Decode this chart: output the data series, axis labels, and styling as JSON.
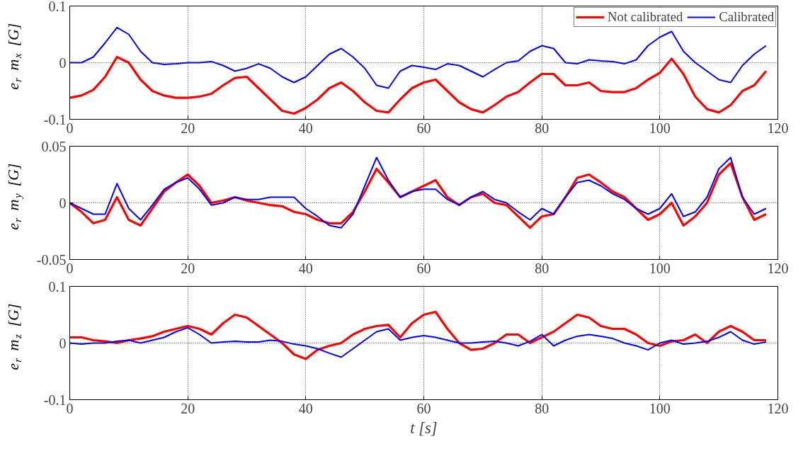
{
  "chart_data": [
    {
      "type": "line",
      "ylabel": "e$_{r}$ m$_{x}$ [G]",
      "xlim": [
        0,
        120
      ],
      "xticks": [
        0,
        20,
        40,
        60,
        80,
        100,
        120
      ],
      "ylim": [
        -0.1,
        0.1
      ],
      "yticks": [
        -0.1,
        0,
        0.1
      ],
      "grid": true,
      "legend": "top right",
      "line_style": "solid",
      "marker": "none",
      "x": [
        0,
        2,
        4,
        6,
        8,
        10,
        12,
        14,
        16,
        18,
        20,
        22,
        24,
        26,
        28,
        30,
        32,
        34,
        36,
        38,
        40,
        42,
        44,
        46,
        48,
        50,
        52,
        54,
        56,
        58,
        60,
        62,
        64,
        66,
        68,
        70,
        72,
        74,
        76,
        78,
        80,
        82,
        84,
        86,
        88,
        90,
        92,
        94,
        96,
        98,
        100,
        102,
        104,
        106,
        108,
        110,
        112,
        114,
        116,
        118
      ],
      "series": [
        {
          "name": "Not calibrated",
          "color": "#ff0000",
          "values": [
            -0.062,
            -0.058,
            -0.048,
            -0.025,
            0.01,
            0.0,
            -0.03,
            -0.05,
            -0.058,
            -0.062,
            -0.062,
            -0.06,
            -0.055,
            -0.04,
            -0.027,
            -0.025,
            -0.045,
            -0.065,
            -0.085,
            -0.09,
            -0.08,
            -0.065,
            -0.045,
            -0.035,
            -0.05,
            -0.07,
            -0.085,
            -0.088,
            -0.065,
            -0.045,
            -0.035,
            -0.03,
            -0.05,
            -0.07,
            -0.082,
            -0.088,
            -0.075,
            -0.06,
            -0.052,
            -0.035,
            -0.02,
            -0.02,
            -0.04,
            -0.04,
            -0.035,
            -0.05,
            -0.052,
            -0.052,
            -0.045,
            -0.03,
            -0.018,
            0.007,
            -0.02,
            -0.06,
            -0.082,
            -0.088,
            -0.075,
            -0.05,
            -0.04,
            -0.015
          ]
        },
        {
          "name": "Calibrated",
          "color": "#0000ff",
          "values": [
            0.0,
            0.0,
            0.01,
            0.035,
            0.062,
            0.05,
            0.02,
            0.0,
            -0.003,
            -0.002,
            0.0,
            0.0,
            0.002,
            -0.005,
            -0.015,
            -0.01,
            -0.002,
            -0.01,
            -0.025,
            -0.035,
            -0.025,
            -0.005,
            0.015,
            0.025,
            0.01,
            -0.01,
            -0.04,
            -0.045,
            -0.015,
            -0.005,
            -0.008,
            -0.012,
            -0.002,
            -0.005,
            -0.015,
            -0.025,
            -0.012,
            0.0,
            0.003,
            0.02,
            0.03,
            0.025,
            0.0,
            -0.002,
            0.005,
            0.003,
            0.002,
            -0.002,
            0.005,
            0.03,
            0.045,
            0.055,
            0.02,
            0.0,
            -0.015,
            -0.03,
            -0.035,
            -0.005,
            0.015,
            0.03
          ]
        }
      ]
    },
    {
      "type": "line",
      "ylabel": "e$_{r}$ m$_{y}$ [G]",
      "xlim": [
        0,
        120
      ],
      "xticks": [
        0,
        20,
        40,
        60,
        80,
        100,
        120
      ],
      "ylim": [
        -0.05,
        0.05
      ],
      "yticks": [
        -0.05,
        0,
        0.05
      ],
      "grid": true,
      "line_style": "solid",
      "marker": "none",
      "x": [
        0,
        2,
        4,
        6,
        8,
        10,
        12,
        14,
        16,
        18,
        20,
        22,
        24,
        26,
        28,
        30,
        32,
        34,
        36,
        38,
        40,
        42,
        44,
        46,
        48,
        50,
        52,
        54,
        56,
        58,
        60,
        62,
        64,
        66,
        68,
        70,
        72,
        74,
        76,
        78,
        80,
        82,
        84,
        86,
        88,
        90,
        92,
        94,
        96,
        98,
        100,
        102,
        104,
        106,
        108,
        110,
        112,
        114,
        116,
        118
      ],
      "series": [
        {
          "color": "#ff0000",
          "values": [
            0.0,
            -0.008,
            -0.018,
            -0.015,
            0.005,
            -0.015,
            -0.02,
            -0.005,
            0.01,
            0.018,
            0.025,
            0.015,
            0.0,
            0.002,
            0.005,
            0.002,
            0.0,
            -0.002,
            -0.003,
            -0.008,
            -0.01,
            -0.015,
            -0.018,
            -0.018,
            -0.008,
            0.01,
            0.03,
            0.018,
            0.005,
            0.01,
            0.015,
            0.02,
            0.005,
            -0.002,
            0.005,
            0.008,
            0.0,
            -0.002,
            -0.012,
            -0.022,
            -0.012,
            -0.01,
            0.005,
            0.022,
            0.025,
            0.018,
            0.01,
            0.005,
            -0.005,
            -0.015,
            -0.01,
            0.0,
            -0.02,
            -0.012,
            0.0,
            0.025,
            0.035,
            0.005,
            -0.015,
            -0.01
          ]
        },
        {
          "color": "#0000ff",
          "values": [
            0.0,
            -0.005,
            -0.01,
            -0.01,
            0.017,
            -0.005,
            -0.015,
            -0.002,
            0.012,
            0.018,
            0.022,
            0.012,
            -0.002,
            0.0,
            0.005,
            0.003,
            0.003,
            0.005,
            0.005,
            0.005,
            -0.005,
            -0.012,
            -0.02,
            -0.022,
            -0.01,
            0.015,
            0.04,
            0.02,
            0.005,
            0.01,
            0.012,
            0.012,
            0.003,
            -0.002,
            0.005,
            0.01,
            0.003,
            0.0,
            -0.008,
            -0.015,
            -0.005,
            -0.01,
            0.005,
            0.018,
            0.02,
            0.015,
            0.008,
            0.003,
            -0.005,
            -0.01,
            -0.005,
            0.008,
            -0.012,
            -0.008,
            0.005,
            0.03,
            0.04,
            0.005,
            -0.01,
            -0.005
          ]
        }
      ]
    },
    {
      "type": "line",
      "xlabel": "t [s]",
      "ylabel": "e$_{r}$ m$_{z}$ [G]",
      "xlim": [
        0,
        120
      ],
      "xticks": [
        0,
        20,
        40,
        60,
        80,
        100,
        120
      ],
      "ylim": [
        -0.1,
        0.1
      ],
      "yticks": [
        -0.1,
        0,
        0.1
      ],
      "grid": true,
      "line_style": "solid",
      "marker": "none",
      "x": [
        0,
        2,
        4,
        6,
        8,
        10,
        12,
        14,
        16,
        18,
        20,
        22,
        24,
        26,
        28,
        30,
        32,
        34,
        36,
        38,
        40,
        42,
        44,
        46,
        48,
        50,
        52,
        54,
        56,
        58,
        60,
        62,
        64,
        66,
        68,
        70,
        72,
        74,
        76,
        78,
        80,
        82,
        84,
        86,
        88,
        90,
        92,
        94,
        96,
        98,
        100,
        102,
        104,
        106,
        108,
        110,
        112,
        114,
        116,
        118
      ],
      "series": [
        {
          "color": "#ff0000",
          "values": [
            0.01,
            0.01,
            0.005,
            0.003,
            0.0,
            0.005,
            0.008,
            0.012,
            0.02,
            0.025,
            0.03,
            0.025,
            0.015,
            0.035,
            0.05,
            0.045,
            0.03,
            0.015,
            0.0,
            -0.02,
            -0.028,
            -0.012,
            -0.005,
            0.0,
            0.015,
            0.025,
            0.03,
            0.032,
            0.01,
            0.035,
            0.05,
            0.055,
            0.025,
            0.0,
            -0.012,
            -0.01,
            0.0,
            0.015,
            0.015,
            0.0,
            0.01,
            0.02,
            0.035,
            0.05,
            0.045,
            0.03,
            0.025,
            0.025,
            0.015,
            0.0,
            -0.005,
            0.003,
            0.005,
            0.015,
            0.0,
            0.02,
            0.03,
            0.02,
            0.005,
            0.005
          ]
        },
        {
          "color": "#0000ff",
          "values": [
            0.0,
            -0.002,
            0.0,
            0.0,
            0.003,
            0.005,
            0.0,
            0.005,
            0.01,
            0.02,
            0.027,
            0.015,
            0.0,
            0.002,
            0.003,
            0.002,
            0.002,
            0.005,
            0.003,
            -0.002,
            -0.005,
            -0.01,
            -0.018,
            -0.025,
            -0.01,
            0.005,
            0.02,
            0.025,
            0.005,
            0.01,
            0.013,
            0.01,
            0.005,
            0.0,
            0.0,
            0.002,
            0.003,
            0.0,
            -0.005,
            0.003,
            0.015,
            -0.005,
            0.005,
            0.012,
            0.015,
            0.012,
            0.008,
            0.0,
            -0.005,
            -0.012,
            0.0,
            0.005,
            -0.002,
            0.0,
            0.003,
            0.01,
            0.02,
            0.005,
            -0.002,
            0.002
          ]
        }
      ]
    }
  ]
}
